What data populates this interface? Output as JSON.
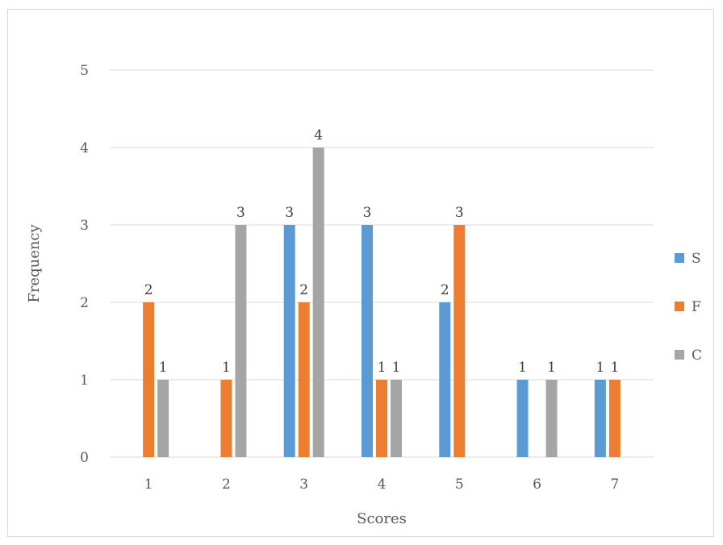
{
  "chart_data": {
    "type": "bar",
    "xlabel": "Scores",
    "ylabel": "Frequency",
    "categories": [
      "1",
      "2",
      "3",
      "4",
      "5",
      "6",
      "7"
    ],
    "ylim": [
      0,
      5
    ],
    "yticks": [
      "0",
      "1",
      "2",
      "3",
      "4",
      "5"
    ],
    "grid": true,
    "legend_position": "right",
    "series": [
      {
        "name": "S",
        "color": "#5b9bd5",
        "values": [
          0,
          0,
          3,
          3,
          2,
          1,
          1
        ]
      },
      {
        "name": "F",
        "color": "#ed7d31",
        "values": [
          2,
          1,
          2,
          1,
          3,
          0,
          1
        ]
      },
      {
        "name": "C",
        "color": "#a5a5a5",
        "values": [
          1,
          3,
          4,
          1,
          0,
          1,
          0
        ]
      }
    ]
  }
}
